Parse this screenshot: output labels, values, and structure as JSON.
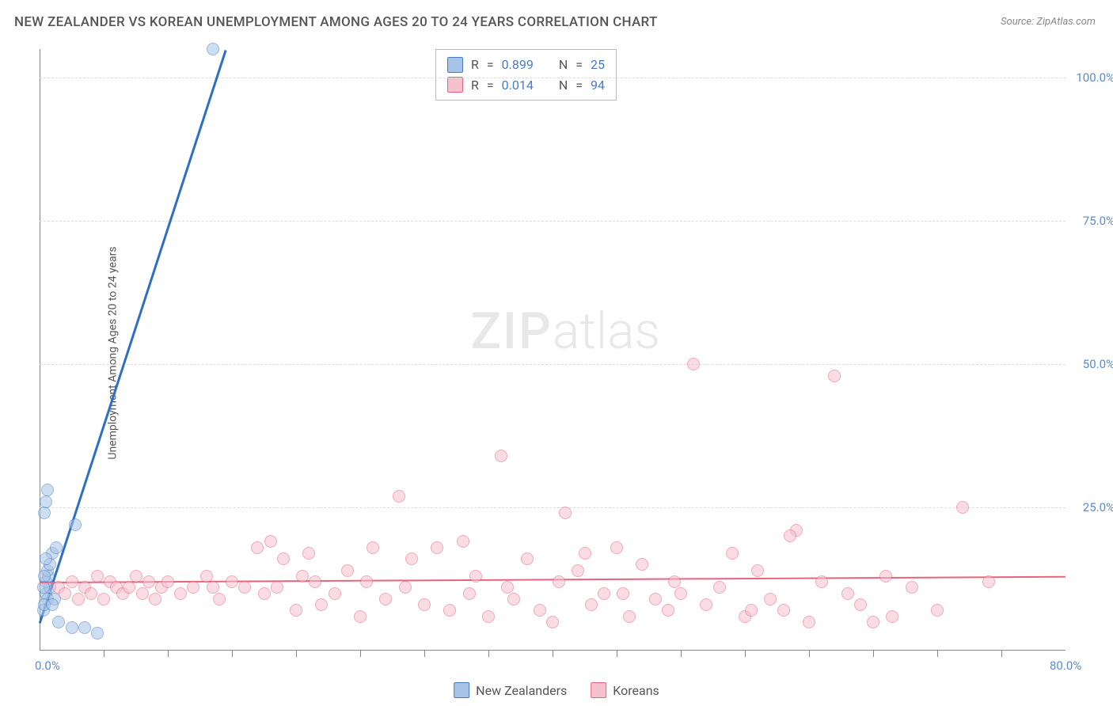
{
  "title": "NEW ZEALANDER VS KOREAN UNEMPLOYMENT AMONG AGES 20 TO 24 YEARS CORRELATION CHART",
  "source": "Source: ZipAtlas.com",
  "ylabel": "Unemployment Among Ages 20 to 24 years",
  "watermark": {
    "bold": "ZIP",
    "rest": "atlas"
  },
  "chart": {
    "type": "scatter",
    "background_color": "#ffffff",
    "grid_color": "#dddddd",
    "axis_color": "#888888",
    "xlim": [
      0,
      80
    ],
    "ylim": [
      0,
      105
    ],
    "xtick_labels": [
      {
        "value": 0,
        "label": "0.0%"
      },
      {
        "value": 80,
        "label": "80.0%"
      }
    ],
    "xtick_marks": [
      5,
      10,
      15,
      20,
      25,
      30,
      35,
      40,
      45,
      50,
      55,
      60,
      65,
      70,
      75
    ],
    "ytick_labels": [
      {
        "value": 25,
        "label": "25.0%"
      },
      {
        "value": 50,
        "label": "50.0%"
      },
      {
        "value": 75,
        "label": "75.0%"
      },
      {
        "value": 100,
        "label": "100.0%"
      }
    ],
    "grid_h": [
      25,
      50,
      75,
      100
    ],
    "point_radius": 8,
    "point_opacity": 0.55
  },
  "series": [
    {
      "name": "New Zealanders",
      "key": "nz",
      "fill_color": "#a7c4e8",
      "stroke_color": "#4a7bc0",
      "line_color": "#2e6fc4",
      "line_width": 2.5,
      "correlation": {
        "R": "0.899",
        "N": "25"
      },
      "regression": {
        "x1": 0,
        "y1": 5,
        "x2": 14.5,
        "y2": 105
      },
      "points": [
        [
          0.3,
          7
        ],
        [
          0.5,
          10
        ],
        [
          0.6,
          9
        ],
        [
          0.4,
          8
        ],
        [
          0.8,
          11
        ],
        [
          0.5,
          12
        ],
        [
          0.7,
          13
        ],
        [
          1.0,
          17
        ],
        [
          1.3,
          18
        ],
        [
          0.4,
          24
        ],
        [
          0.5,
          26
        ],
        [
          0.6,
          28
        ],
        [
          2.8,
          22
        ],
        [
          1.2,
          9
        ],
        [
          1.0,
          8
        ],
        [
          1.5,
          5
        ],
        [
          2.5,
          4
        ],
        [
          3.5,
          4
        ],
        [
          4.5,
          3
        ],
        [
          0.6,
          14
        ],
        [
          0.8,
          15
        ],
        [
          0.5,
          16
        ],
        [
          0.4,
          13
        ],
        [
          0.3,
          11
        ],
        [
          13.5,
          105
        ]
      ]
    },
    {
      "name": "Koreans",
      "key": "kr",
      "fill_color": "#f5c1cf",
      "stroke_color": "#e8647e",
      "line_color": "#e8647e",
      "line_width": 2,
      "correlation": {
        "R": "0.014",
        "N": "94"
      },
      "regression": {
        "x1": 0,
        "y1": 12,
        "x2": 80,
        "y2": 13
      },
      "points": [
        [
          1.5,
          11
        ],
        [
          2,
          10
        ],
        [
          2.5,
          12
        ],
        [
          3,
          9
        ],
        [
          3.5,
          11
        ],
        [
          4,
          10
        ],
        [
          4.5,
          13
        ],
        [
          5,
          9
        ],
        [
          5.5,
          12
        ],
        [
          6,
          11
        ],
        [
          6.5,
          10
        ],
        [
          7,
          11
        ],
        [
          7.5,
          13
        ],
        [
          8,
          10
        ],
        [
          8.5,
          12
        ],
        [
          9,
          9
        ],
        [
          9.5,
          11
        ],
        [
          10,
          12
        ],
        [
          11,
          10
        ],
        [
          12,
          11
        ],
        [
          13,
          13
        ],
        [
          14,
          9
        ],
        [
          15,
          12
        ],
        [
          16,
          11
        ],
        [
          17,
          18
        ],
        [
          17.5,
          10
        ],
        [
          18,
          19
        ],
        [
          18.5,
          11
        ],
        [
          19,
          16
        ],
        [
          20,
          7
        ],
        [
          20.5,
          13
        ],
        [
          21,
          17
        ],
        [
          22,
          8
        ],
        [
          23,
          10
        ],
        [
          24,
          14
        ],
        [
          25,
          6
        ],
        [
          25.5,
          12
        ],
        [
          26,
          18
        ],
        [
          27,
          9
        ],
        [
          28,
          27
        ],
        [
          28.5,
          11
        ],
        [
          29,
          16
        ],
        [
          30,
          8
        ],
        [
          31,
          18
        ],
        [
          32,
          7
        ],
        [
          33,
          19
        ],
        [
          33.5,
          10
        ],
        [
          34,
          13
        ],
        [
          35,
          6
        ],
        [
          36,
          34
        ],
        [
          36.5,
          11
        ],
        [
          37,
          9
        ],
        [
          38,
          16
        ],
        [
          39,
          7
        ],
        [
          40,
          5
        ],
        [
          40.5,
          12
        ],
        [
          41,
          24
        ],
        [
          42,
          14
        ],
        [
          43,
          8
        ],
        [
          44,
          10
        ],
        [
          45,
          18
        ],
        [
          46,
          6
        ],
        [
          47,
          15
        ],
        [
          48,
          9
        ],
        [
          49,
          7
        ],
        [
          49.5,
          12
        ],
        [
          50,
          10
        ],
        [
          51,
          50
        ],
        [
          52,
          8
        ],
        [
          53,
          11
        ],
        [
          54,
          17
        ],
        [
          55,
          6
        ],
        [
          56,
          14
        ],
        [
          57,
          9
        ],
        [
          58,
          7
        ],
        [
          59,
          21
        ],
        [
          60,
          5
        ],
        [
          61,
          12
        ],
        [
          62,
          48
        ],
        [
          63,
          10
        ],
        [
          64,
          8
        ],
        [
          65,
          5
        ],
        [
          66,
          13
        ],
        [
          68,
          11
        ],
        [
          70,
          7
        ],
        [
          72,
          25
        ],
        [
          74,
          12
        ],
        [
          55.5,
          7
        ],
        [
          58.5,
          20
        ],
        [
          66.5,
          6
        ],
        [
          21.5,
          12
        ],
        [
          42.5,
          17
        ],
        [
          13.5,
          11
        ],
        [
          45.5,
          10
        ]
      ]
    }
  ],
  "correlation_box": {
    "R_label": "R",
    "N_label": "N",
    "equals": "="
  },
  "legend": {
    "nz_label": "New Zealanders",
    "kr_label": "Koreans"
  }
}
